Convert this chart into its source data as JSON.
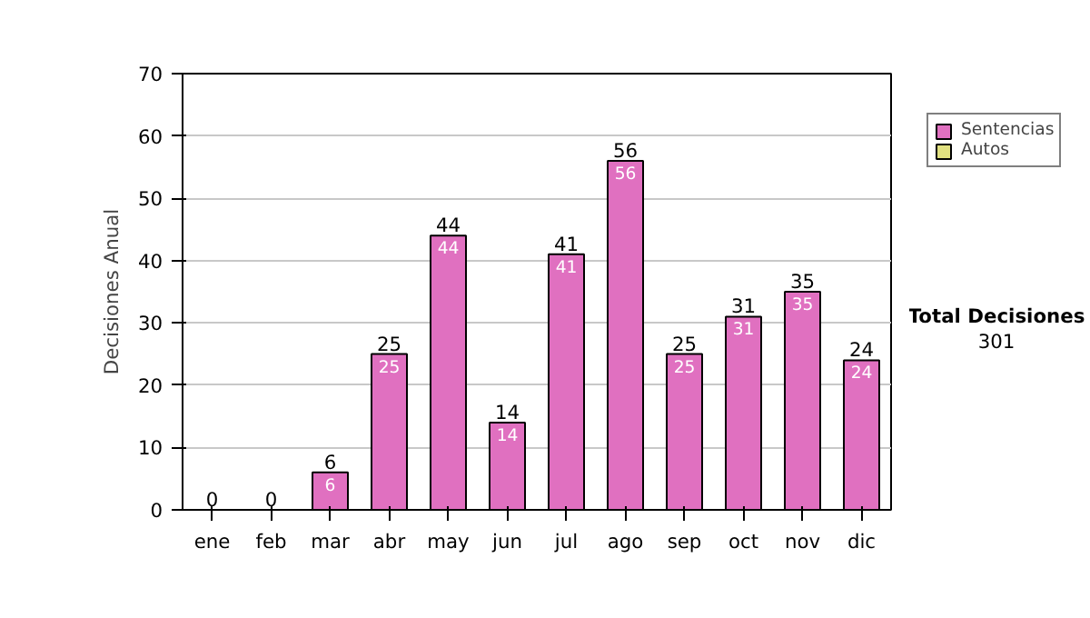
{
  "chart_data": {
    "type": "bar",
    "ylabel": "Decisiones Anual",
    "categories": [
      "ene",
      "feb",
      "mar",
      "abr",
      "may",
      "jun",
      "jul",
      "ago",
      "sep",
      "oct",
      "nov",
      "dic"
    ],
    "series": [
      {
        "name": "Sentencias",
        "color": "#e070c0",
        "values": [
          0,
          0,
          6,
          25,
          44,
          14,
          41,
          56,
          25,
          31,
          35,
          24
        ],
        "value_labels": [
          null,
          null,
          "6",
          "25",
          "44",
          "14",
          "41",
          "56",
          "25",
          "31",
          "35",
          "24"
        ]
      },
      {
        "name": "Autos",
        "color": "#e0e080",
        "values": [
          null,
          null,
          null,
          null,
          null,
          null,
          null,
          null,
          null,
          null,
          null,
          null
        ]
      }
    ],
    "totals": [
      "0",
      "0",
      "6",
      "25",
      "44",
      "14",
      "41",
      "56",
      "25",
      "31",
      "35",
      "24"
    ],
    "ylim": [
      0,
      70
    ],
    "yticks": [
      0,
      10,
      20,
      30,
      40,
      50,
      60,
      70
    ],
    "grid": "y",
    "legend": "right",
    "annotations": [
      "Total Decisiones",
      "301"
    ]
  }
}
